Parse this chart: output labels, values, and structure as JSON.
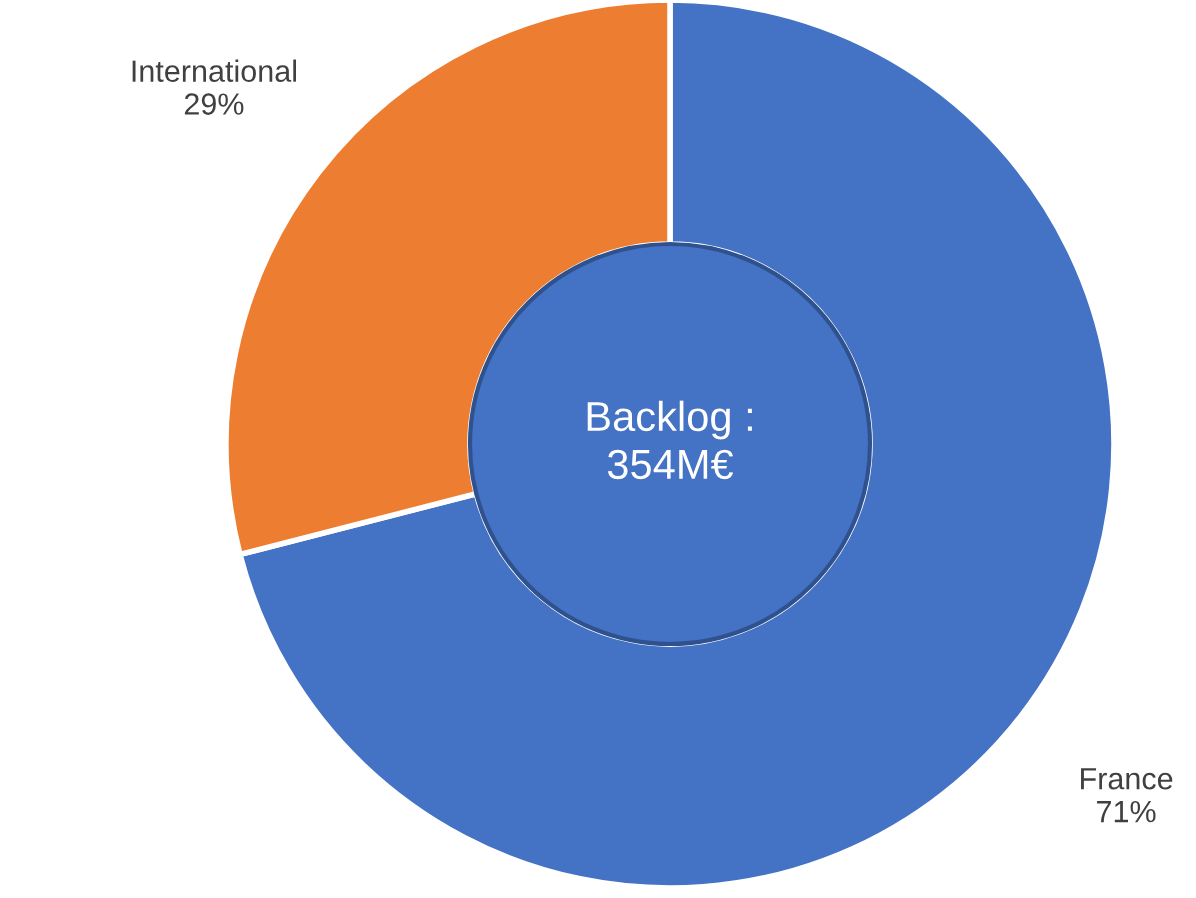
{
  "chart_data": {
    "type": "donut",
    "categories": [
      "France",
      "International"
    ],
    "values": [
      71,
      29
    ],
    "value_labels": [
      "71%",
      "29%"
    ],
    "colors": [
      "#4472c4",
      "#ed7d31"
    ],
    "annotations": [
      "Backlog :\n354M€"
    ]
  }
}
